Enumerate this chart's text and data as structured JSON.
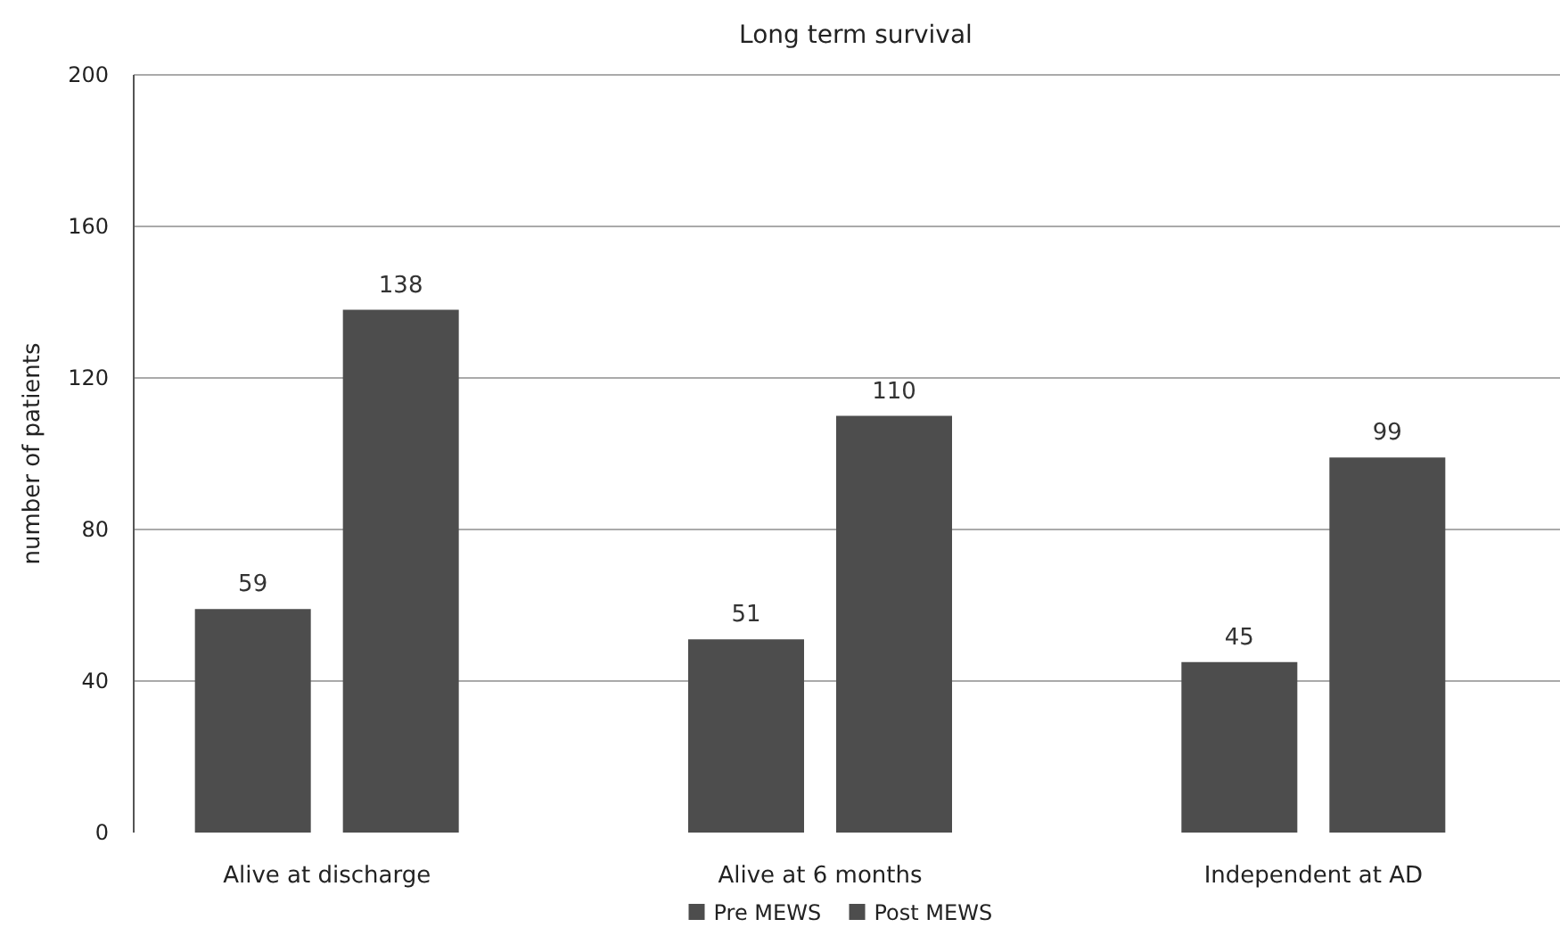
{
  "chart_data": {
    "type": "bar",
    "title": "Long term survival",
    "ylabel": "number of patients",
    "categories": [
      "Alive at discharge",
      "Alive at 6 months",
      "Independent at AD"
    ],
    "series": [
      {
        "name": "Pre MEWS",
        "color": "#4d4d4d",
        "values": [
          59,
          51,
          45
        ]
      },
      {
        "name": "Post MEWS",
        "color": "#4d4d4d",
        "values": [
          138,
          110,
          99
        ]
      }
    ],
    "ylim": [
      0,
      200
    ],
    "yticks": [
      0,
      40,
      80,
      120,
      160,
      200
    ],
    "grid": "y",
    "legend": "bottom",
    "data_labels": true
  }
}
